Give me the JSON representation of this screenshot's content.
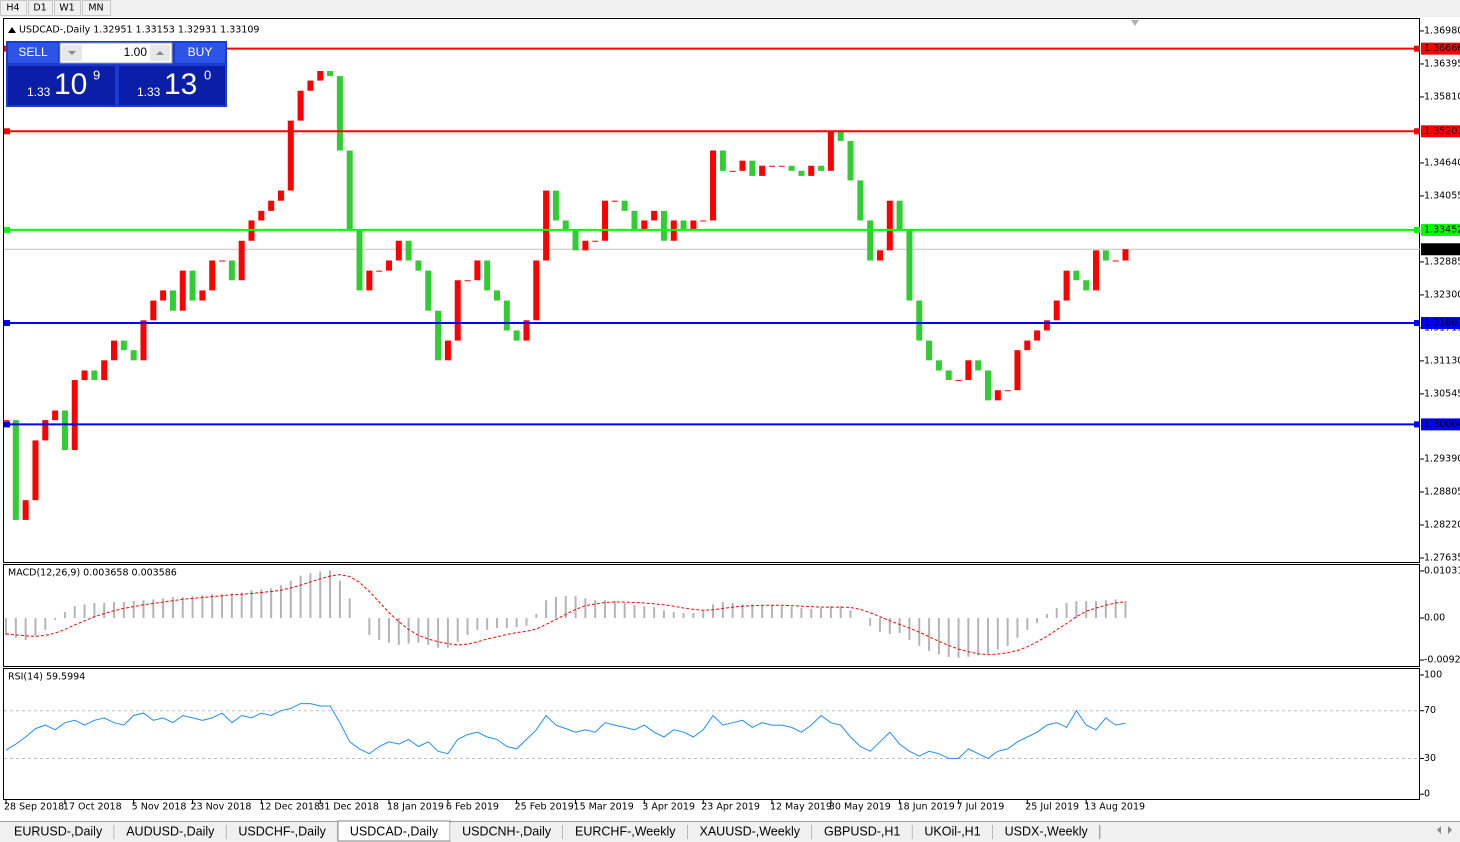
{
  "toolbar": [
    "H4",
    "D1",
    "W1",
    "MN"
  ],
  "trade_panel": {
    "sell_label": "SELL",
    "buy_label": "BUY",
    "lots": "1.00",
    "bid": {
      "prefix": "1.33",
      "big": "10",
      "pip": "9"
    },
    "ask": {
      "prefix": "1.33",
      "big": "13",
      "pip": "0"
    }
  },
  "tabs": [
    "EURUSD-,Daily",
    "AUDUSD-,Daily",
    "USDCHF-,Daily",
    "USDCAD-,Daily",
    "USDCNH-,Daily",
    "EURCHF-,Weekly",
    "XAUUSD-,Weekly",
    "GBPUSD-,H1",
    "UKOil-,H1",
    "USDX-,Weekly"
  ],
  "active_tab": 3,
  "chart_data": [
    {
      "type": "candlestick",
      "title": "USDCAD-,Daily  1.32951 1.33153 1.32931 1.33109",
      "up_color": "#ff0000",
      "down_color": "#32cd32",
      "categories": [
        "28 Sep 2018",
        null,
        null,
        null,
        null,
        null,
        "17 Oct 2018",
        null,
        null,
        null,
        null,
        null,
        null,
        "5 Nov 2018",
        null,
        null,
        null,
        null,
        null,
        "23 Nov 2018",
        null,
        null,
        null,
        null,
        null,
        null,
        "12 Dec 2018",
        null,
        null,
        null,
        null,
        null,
        "31 Dec 2018",
        null,
        null,
        null,
        null,
        null,
        null,
        "18 Jan 2019",
        null,
        null,
        null,
        null,
        null,
        "6 Feb 2019",
        null,
        null,
        null,
        null,
        null,
        null,
        "25 Feb 2019",
        null,
        null,
        null,
        null,
        null,
        "15 Mar 2019",
        null,
        null,
        null,
        null,
        null,
        null,
        "3 Apr 2019",
        null,
        null,
        null,
        null,
        null,
        "23 Apr 2019",
        null,
        null,
        null,
        null,
        null,
        null,
        "12 May 2019",
        null,
        null,
        null,
        null,
        null,
        "30 May 2019",
        null,
        null,
        null,
        null,
        null,
        null,
        "18 Jun 2019",
        null,
        null,
        null,
        null,
        null,
        "7 Jul 2019",
        null,
        null,
        null,
        null,
        null,
        null,
        "25 Jul 2019",
        null,
        null,
        null,
        null,
        null,
        "13 Aug 2019",
        null,
        null,
        null,
        null
      ],
      "close": [
        1.3008,
        1.2831,
        1.2866,
        1.2972,
        1.3008,
        1.3025,
        1.2955,
        1.3079,
        1.3096,
        1.3079,
        1.3114,
        1.3149,
        1.3132,
        1.3114,
        1.3185,
        1.322,
        1.3238,
        1.3202,
        1.3273,
        1.322,
        1.3238,
        1.3291,
        1.3291,
        1.3256,
        1.3326,
        1.3362,
        1.3379,
        1.3397,
        1.3415,
        1.3539,
        1.3592,
        1.361,
        1.3627,
        1.3618,
        1.3486,
        1.3344,
        1.3238,
        1.3273,
        1.3273,
        1.3291,
        1.3326,
        1.3291,
        1.3273,
        1.3202,
        1.3114,
        1.3149,
        1.3256,
        1.3256,
        1.3291,
        1.3238,
        1.322,
        1.3167,
        1.3149,
        1.3185,
        1.3291,
        1.3415,
        1.3362,
        1.3344,
        1.3309,
        1.3326,
        1.3326,
        1.3397,
        1.3397,
        1.3379,
        1.3344,
        1.3362,
        1.3379,
        1.3326,
        1.3362,
        1.3344,
        1.3362,
        1.3362,
        1.3486,
        1.345,
        1.345,
        1.3468,
        1.3441,
        1.3459,
        1.3459,
        1.3459,
        1.345,
        1.3441,
        1.3459,
        1.345,
        1.3521,
        1.3503,
        1.3433,
        1.3362,
        1.3291,
        1.3309,
        1.3397,
        1.3344,
        1.322,
        1.3149,
        1.3114,
        1.3096,
        1.3079,
        1.3079,
        1.3114,
        1.3096,
        1.3043,
        1.3061,
        1.3061,
        1.3132,
        1.3149,
        1.3167,
        1.3185,
        1.322,
        1.3273,
        1.3256,
        1.3238,
        1.3309,
        1.3291,
        1.3291,
        1.33109
      ],
      "ylim": [
        1.27564,
        1.37192
      ],
      "yticks": [
        {
          "value": 1.3698,
          "label": "1.36980"
        },
        1.36395,
        {
          "value": 1.3581,
          "label": "1.35810"
        },
        {
          "value": 1.3464,
          "label": "1.34640"
        },
        1.34055,
        1.32885,
        {
          "value": 1.323,
          "label": "1.32300"
        },
        1.31715,
        {
          "value": 1.3113,
          "label": "1.31130"
        },
        1.30545,
        {
          "value": 1.2939,
          "label": "1.29390"
        },
        1.28805,
        {
          "value": 1.2822,
          "label": "1.28220"
        },
        1.27635
      ],
      "hlines": [
        {
          "value": 1.36666,
          "color": "#ff0000"
        },
        {
          "value": 1.35201,
          "color": "#ff0000"
        },
        {
          "value": 1.33452,
          "color": "#00ff00"
        },
        {
          "value": 1.31801,
          "color": "#0000ff"
        },
        {
          "value": 1.30004,
          "color": "#0000ff"
        }
      ],
      "current_price": 1.33109
    },
    {
      "type": "macd",
      "title": "MACD(12,26,9) 0.003658 0.003586",
      "histogram_color": "#b4b4b4",
      "signal_color": "#ff0000",
      "histogram": [
        -0.0037,
        -0.0043,
        -0.0048,
        -0.0039,
        -0.0026,
        -0.0004,
        0.0013,
        0.0026,
        0.003,
        0.0033,
        0.0033,
        0.0035,
        0.0035,
        0.0037,
        0.0039,
        0.0041,
        0.0043,
        0.0046,
        0.0046,
        0.0048,
        0.005,
        0.0052,
        0.0052,
        0.0054,
        0.0056,
        0.0061,
        0.0063,
        0.0065,
        0.0072,
        0.0082,
        0.0093,
        0.0098,
        0.0102,
        0.0104,
        0.0082,
        0.0043,
        0,
        -0.0037,
        -0.0048,
        -0.0054,
        -0.0059,
        -0.0056,
        -0.0054,
        -0.0059,
        -0.0065,
        -0.0065,
        -0.0052,
        -0.0037,
        -0.0026,
        -0.0026,
        -0.0022,
        -0.0022,
        -0.002,
        -0.0017,
        0.0009,
        0.0039,
        0.0046,
        0.0048,
        0.0048,
        0.0043,
        0.0039,
        0.0039,
        0.0037,
        0.0033,
        0.0028,
        0.0026,
        0.0024,
        0.0017,
        0.0013,
        0.0011,
        0.0011,
        0.0015,
        0.003,
        0.0035,
        0.0033,
        0.003,
        0.003,
        0.0028,
        0.0028,
        0.0026,
        0.0024,
        0.0022,
        0.002,
        0.0022,
        0.0026,
        0.0026,
        0.0017,
        0,
        -0.0017,
        -0.003,
        -0.0035,
        -0.0033,
        -0.0048,
        -0.0061,
        -0.0072,
        -0.008,
        -0.0085,
        -0.0087,
        -0.0085,
        -0.0082,
        -0.0078,
        -0.0069,
        -0.0061,
        -0.0043,
        -0.0026,
        -0.0011,
        0.0009,
        0.0022,
        0.0033,
        0.0037,
        0.0037,
        0.0037,
        0.0039,
        0.0041,
        0.003658
      ],
      "signal": [
        -0.0035,
        -0.0037,
        -0.0039,
        -0.004,
        -0.0038,
        -0.0033,
        -0.0025,
        -0.0015,
        -0.0006,
        0.0003,
        0.001,
        0.0016,
        0.0021,
        0.0025,
        0.0029,
        0.0032,
        0.0035,
        0.0038,
        0.0041,
        0.0043,
        0.0045,
        0.0047,
        0.0049,
        0.0051,
        0.0052,
        0.0054,
        0.0056,
        0.0058,
        0.0061,
        0.0066,
        0.0072,
        0.0079,
        0.0086,
        0.0092,
        0.0095,
        0.0091,
        0.0078,
        0.0058,
        0.0035,
        0.0012,
        -0.0008,
        -0.0025,
        -0.0038,
        -0.0046,
        -0.0052,
        -0.0056,
        -0.0059,
        -0.0057,
        -0.0052,
        -0.0046,
        -0.0041,
        -0.0036,
        -0.0032,
        -0.0029,
        -0.0024,
        -0.0014,
        -0.0003,
        0.0008,
        0.0019,
        0.0027,
        0.0031,
        0.0034,
        0.0035,
        0.0035,
        0.0034,
        0.0033,
        0.0031,
        0.0029,
        0.0026,
        0.0022,
        0.0019,
        0.0017,
        0.0018,
        0.0021,
        0.0024,
        0.0026,
        0.0027,
        0.0028,
        0.0028,
        0.0028,
        0.0027,
        0.0026,
        0.0025,
        0.0024,
        0.0024,
        0.0024,
        0.0023,
        0.0019,
        0.0012,
        0.0003,
        -0.0006,
        -0.0014,
        -0.0022,
        -0.0031,
        -0.0041,
        -0.0051,
        -0.006,
        -0.0068,
        -0.0074,
        -0.0078,
        -0.008,
        -0.0079,
        -0.0076,
        -0.0071,
        -0.0063,
        -0.0052,
        -0.004,
        -0.0026,
        -0.0012,
        0.0003,
        0.0015,
        0.0022,
        0.0028,
        0.0033,
        0.003586
      ],
      "ylim": [
        -0.010503,
        0.011612
      ],
      "yticks": [
        0.010311,
        {
          "value": 0,
          "label": "0.00"
        },
        -0.009202
      ]
    },
    {
      "type": "line",
      "title": "RSI(14) 59.5994",
      "color": "#1e90ff",
      "values": [
        37,
        42,
        48,
        55,
        58,
        54,
        60,
        62,
        58,
        62,
        64,
        60,
        58,
        66,
        68,
        62,
        64,
        60,
        66,
        64,
        62,
        64,
        68,
        60,
        66,
        64,
        68,
        66,
        70,
        72,
        76,
        76,
        74,
        74,
        60,
        44,
        38,
        34,
        40,
        44,
        42,
        46,
        40,
        44,
        36,
        34,
        46,
        50,
        52,
        48,
        46,
        40,
        38,
        46,
        54,
        66,
        58,
        55,
        52,
        54,
        52,
        60,
        58,
        56,
        54,
        58,
        52,
        48,
        54,
        52,
        48,
        54,
        66,
        58,
        60,
        62,
        56,
        60,
        58,
        58,
        56,
        52,
        58,
        66,
        60,
        58,
        48,
        40,
        36,
        44,
        52,
        42,
        36,
        32,
        36,
        34,
        30,
        30,
        38,
        34,
        30,
        36,
        38,
        44,
        48,
        52,
        58,
        60,
        56,
        70,
        58,
        54,
        64,
        58,
        59.5994
      ],
      "ylim": [
        -4,
        105
      ],
      "yticks": [
        100,
        70,
        30,
        0
      ],
      "levels": [
        70,
        30
      ]
    }
  ]
}
